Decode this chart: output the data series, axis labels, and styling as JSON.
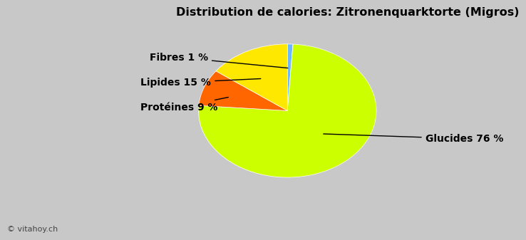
{
  "title": "Distribution de calories: Zitronenquarktorte (Migros)",
  "slices": [
    {
      "label": "Glucides 76 %",
      "value": 76,
      "color": "#CCFF00"
    },
    {
      "label": "Fibres 1 %",
      "value": 1,
      "color": "#6BB8FF"
    },
    {
      "label": "Lipides 15 %",
      "value": 15,
      "color": "#FFE800"
    },
    {
      "label": "Protéines 9 %",
      "value": 9,
      "color": "#FF6600"
    }
  ],
  "background_color": "#C8C8C8",
  "title_color": "#000000",
  "title_fontsize": 11.5,
  "label_fontsize": 10,
  "watermark": "© vitahoy.ch",
  "watermark_fontsize": 8,
  "wedge_edge_color": "white",
  "wedge_linewidth": 0.5
}
